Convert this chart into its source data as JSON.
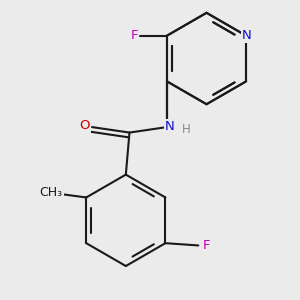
{
  "bg_color": "#ebebeb",
  "bond_color": "#1a1a1a",
  "bond_width": 1.5,
  "atom_colors": {
    "N": "#1010cc",
    "O": "#cc0000",
    "F": "#bb00bb",
    "C": "#1a1a1a",
    "H": "#888888"
  },
  "font_size": 9.5
}
